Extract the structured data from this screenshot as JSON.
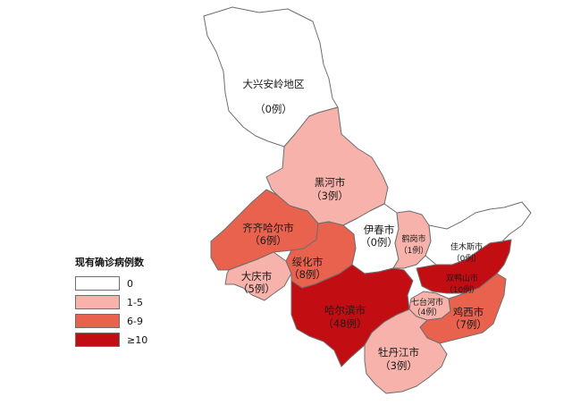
{
  "legend": {
    "title": "现有确诊病例数",
    "items": [
      {
        "label": "0",
        "color": "#ffffff"
      },
      {
        "label": "1-5",
        "color": "#f7b3ab"
      },
      {
        "label": "6-9",
        "color": "#e8624e"
      },
      {
        "label": "≥10",
        "color": "#c20e13"
      }
    ]
  },
  "regions": [
    {
      "key": "daxinganling",
      "name": "大兴安岭地区",
      "value": "（0例）",
      "color": "#ffffff"
    },
    {
      "key": "heihe",
      "name": "黑河市",
      "value": "（3例）",
      "color": "#f7b3ab"
    },
    {
      "key": "qiqihar",
      "name": "齐齐哈尔市",
      "value": "（6例）",
      "color": "#e8624e"
    },
    {
      "key": "daqing",
      "name": "大庆市",
      "value": "（5例）",
      "color": "#f7b3ab"
    },
    {
      "key": "suihua",
      "name": "绥化市",
      "value": "（8例）",
      "color": "#e8624e"
    },
    {
      "key": "yichun",
      "name": "伊春市",
      "value": "（0例）",
      "color": "#ffffff"
    },
    {
      "key": "hegang",
      "name": "鹤岗市",
      "value": "（1例）",
      "color": "#f7b3ab"
    },
    {
      "key": "jiamusi",
      "name": "佳木斯市",
      "value": "（0例）",
      "color": "#ffffff"
    },
    {
      "key": "shuangyashan",
      "name": "双鸭山市",
      "value": "（10例）",
      "color": "#c20e13"
    },
    {
      "key": "qitaihe",
      "name": "七台河市",
      "value": "（4例）",
      "color": "#f7b3ab"
    },
    {
      "key": "jixi",
      "name": "鸡西市",
      "value": "（7例）",
      "color": "#e8624e"
    },
    {
      "key": "harbin",
      "name": "哈尔滨市",
      "value": "（48例）",
      "color": "#c20e13"
    },
    {
      "key": "mudanjiang",
      "name": "牡丹江市",
      "value": "（3例）",
      "color": "#f7b3ab"
    }
  ]
}
